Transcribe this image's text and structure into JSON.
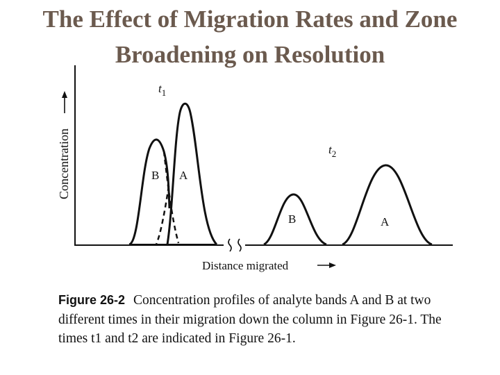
{
  "title": {
    "line1": "The Effect of Migration Rates and Zone",
    "line2": "Broadening on Resolution"
  },
  "figure": {
    "y_axis_label": "Concentration",
    "x_axis_label": "Distance migrated",
    "time_label_1": "t",
    "time_label_1_sub": "1",
    "time_label_2": "t",
    "time_label_2_sub": "2",
    "peak_labels_t1": {
      "b": "B",
      "a": "A"
    },
    "peak_labels_t2": {
      "b": "B",
      "a": "A"
    }
  },
  "caption": {
    "label": "Figure 26-2",
    "text": "Concentration profiles of analyte bands A and B at two different times in their migration down the column in Figure 26-1. The times t1 and t2 are indicated in Figure 26-1."
  },
  "colors": {
    "title": "#6b5a4e",
    "ink": "#111111",
    "background": "#ffffff"
  }
}
